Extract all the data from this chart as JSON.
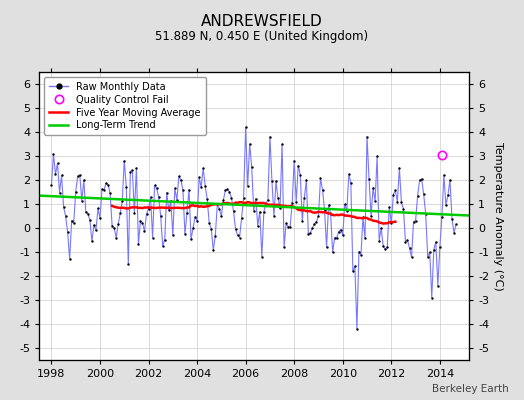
{
  "title": "ANDREWSFIELD",
  "subtitle": "51.889 N, 0.450 E (United Kingdom)",
  "ylabel": "Temperature Anomaly (°C)",
  "footer": "Berkeley Earth",
  "xlim": [
    1997.5,
    2015.2
  ],
  "ylim": [
    -5.5,
    6.5
  ],
  "yticks": [
    -5,
    -4,
    -3,
    -2,
    -1,
    0,
    1,
    2,
    3,
    4,
    5,
    6
  ],
  "xticks": [
    1998,
    2000,
    2002,
    2004,
    2006,
    2008,
    2010,
    2012,
    2014
  ],
  "raw_color": "#7777ff",
  "dot_color": "#000000",
  "moving_avg_color": "#ff0000",
  "trend_color": "#00cc00",
  "qc_fail_color": "#ff00ff",
  "background_color": "#e0e0e0",
  "plot_bg_color": "#ffffff",
  "trend_x": [
    1997.5,
    2015.2
  ],
  "trend_y": [
    1.35,
    0.52
  ],
  "qc_fail_x": 2014.1,
  "qc_fail_y": 3.05,
  "title_fontsize": 11,
  "subtitle_fontsize": 8.5,
  "tick_fontsize": 8,
  "legend_fontsize": 7,
  "ylabel_fontsize": 8
}
